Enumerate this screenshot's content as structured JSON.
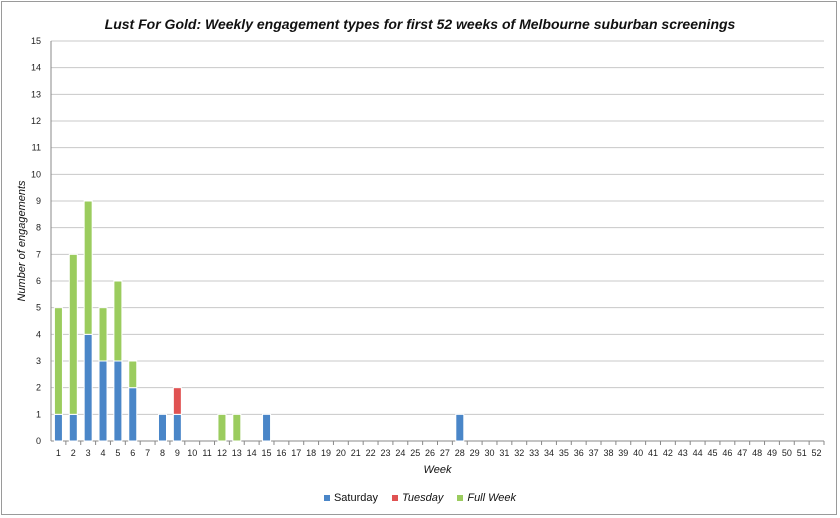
{
  "chart_data": {
    "type": "bar",
    "stacked": true,
    "title": "Lust For Gold: Weekly engagement types for first 52 weeks of Melbourne suburban screenings",
    "xlabel": "Week",
    "ylabel": "Number of engagements",
    "ylim": [
      0,
      15
    ],
    "yticks": [
      "0",
      "1",
      "2",
      "3",
      "4",
      "5",
      "6",
      "7",
      "8",
      "9",
      "10",
      "11",
      "12",
      "13",
      "14",
      "15"
    ],
    "categories": [
      "1",
      "2",
      "3",
      "4",
      "5",
      "6",
      "7",
      "8",
      "9",
      "10",
      "11",
      "12",
      "13",
      "14",
      "15",
      "16",
      "17",
      "18",
      "19",
      "20",
      "21",
      "22",
      "23",
      "24",
      "25",
      "26",
      "27",
      "28",
      "29",
      "30",
      "31",
      "32",
      "33",
      "34",
      "35",
      "36",
      "37",
      "38",
      "39",
      "40",
      "41",
      "42",
      "43",
      "44",
      "45",
      "46",
      "47",
      "48",
      "49",
      "50",
      "51",
      "52"
    ],
    "grid": true,
    "legend_position": "bottom",
    "series": [
      {
        "name": "Saturday",
        "color": "#4a86c8",
        "italic": false,
        "values": [
          1,
          1,
          4,
          3,
          3,
          2,
          0,
          1,
          1,
          0,
          0,
          0,
          0,
          0,
          1,
          0,
          0,
          0,
          0,
          0,
          0,
          0,
          0,
          0,
          0,
          0,
          0,
          1,
          0,
          0,
          0,
          0,
          0,
          0,
          0,
          0,
          0,
          0,
          0,
          0,
          0,
          0,
          0,
          0,
          0,
          0,
          0,
          0,
          0,
          0,
          0,
          0
        ]
      },
      {
        "name": "Tuesday",
        "color": "#e05252",
        "italic": true,
        "values": [
          0,
          0,
          0,
          0,
          0,
          0,
          0,
          0,
          1,
          0,
          0,
          0,
          0,
          0,
          0,
          0,
          0,
          0,
          0,
          0,
          0,
          0,
          0,
          0,
          0,
          0,
          0,
          0,
          0,
          0,
          0,
          0,
          0,
          0,
          0,
          0,
          0,
          0,
          0,
          0,
          0,
          0,
          0,
          0,
          0,
          0,
          0,
          0,
          0,
          0,
          0,
          0
        ]
      },
      {
        "name": "Full Week",
        "color": "#9bcc5e",
        "italic": true,
        "values": [
          4,
          6,
          5,
          2,
          3,
          1,
          0,
          0,
          0,
          0,
          0,
          1,
          1,
          0,
          0,
          0,
          0,
          0,
          0,
          0,
          0,
          0,
          0,
          0,
          0,
          0,
          0,
          0,
          0,
          0,
          0,
          0,
          0,
          0,
          0,
          0,
          0,
          0,
          0,
          0,
          0,
          0,
          0,
          0,
          0,
          0,
          0,
          0,
          0,
          0,
          0,
          0
        ]
      }
    ]
  }
}
